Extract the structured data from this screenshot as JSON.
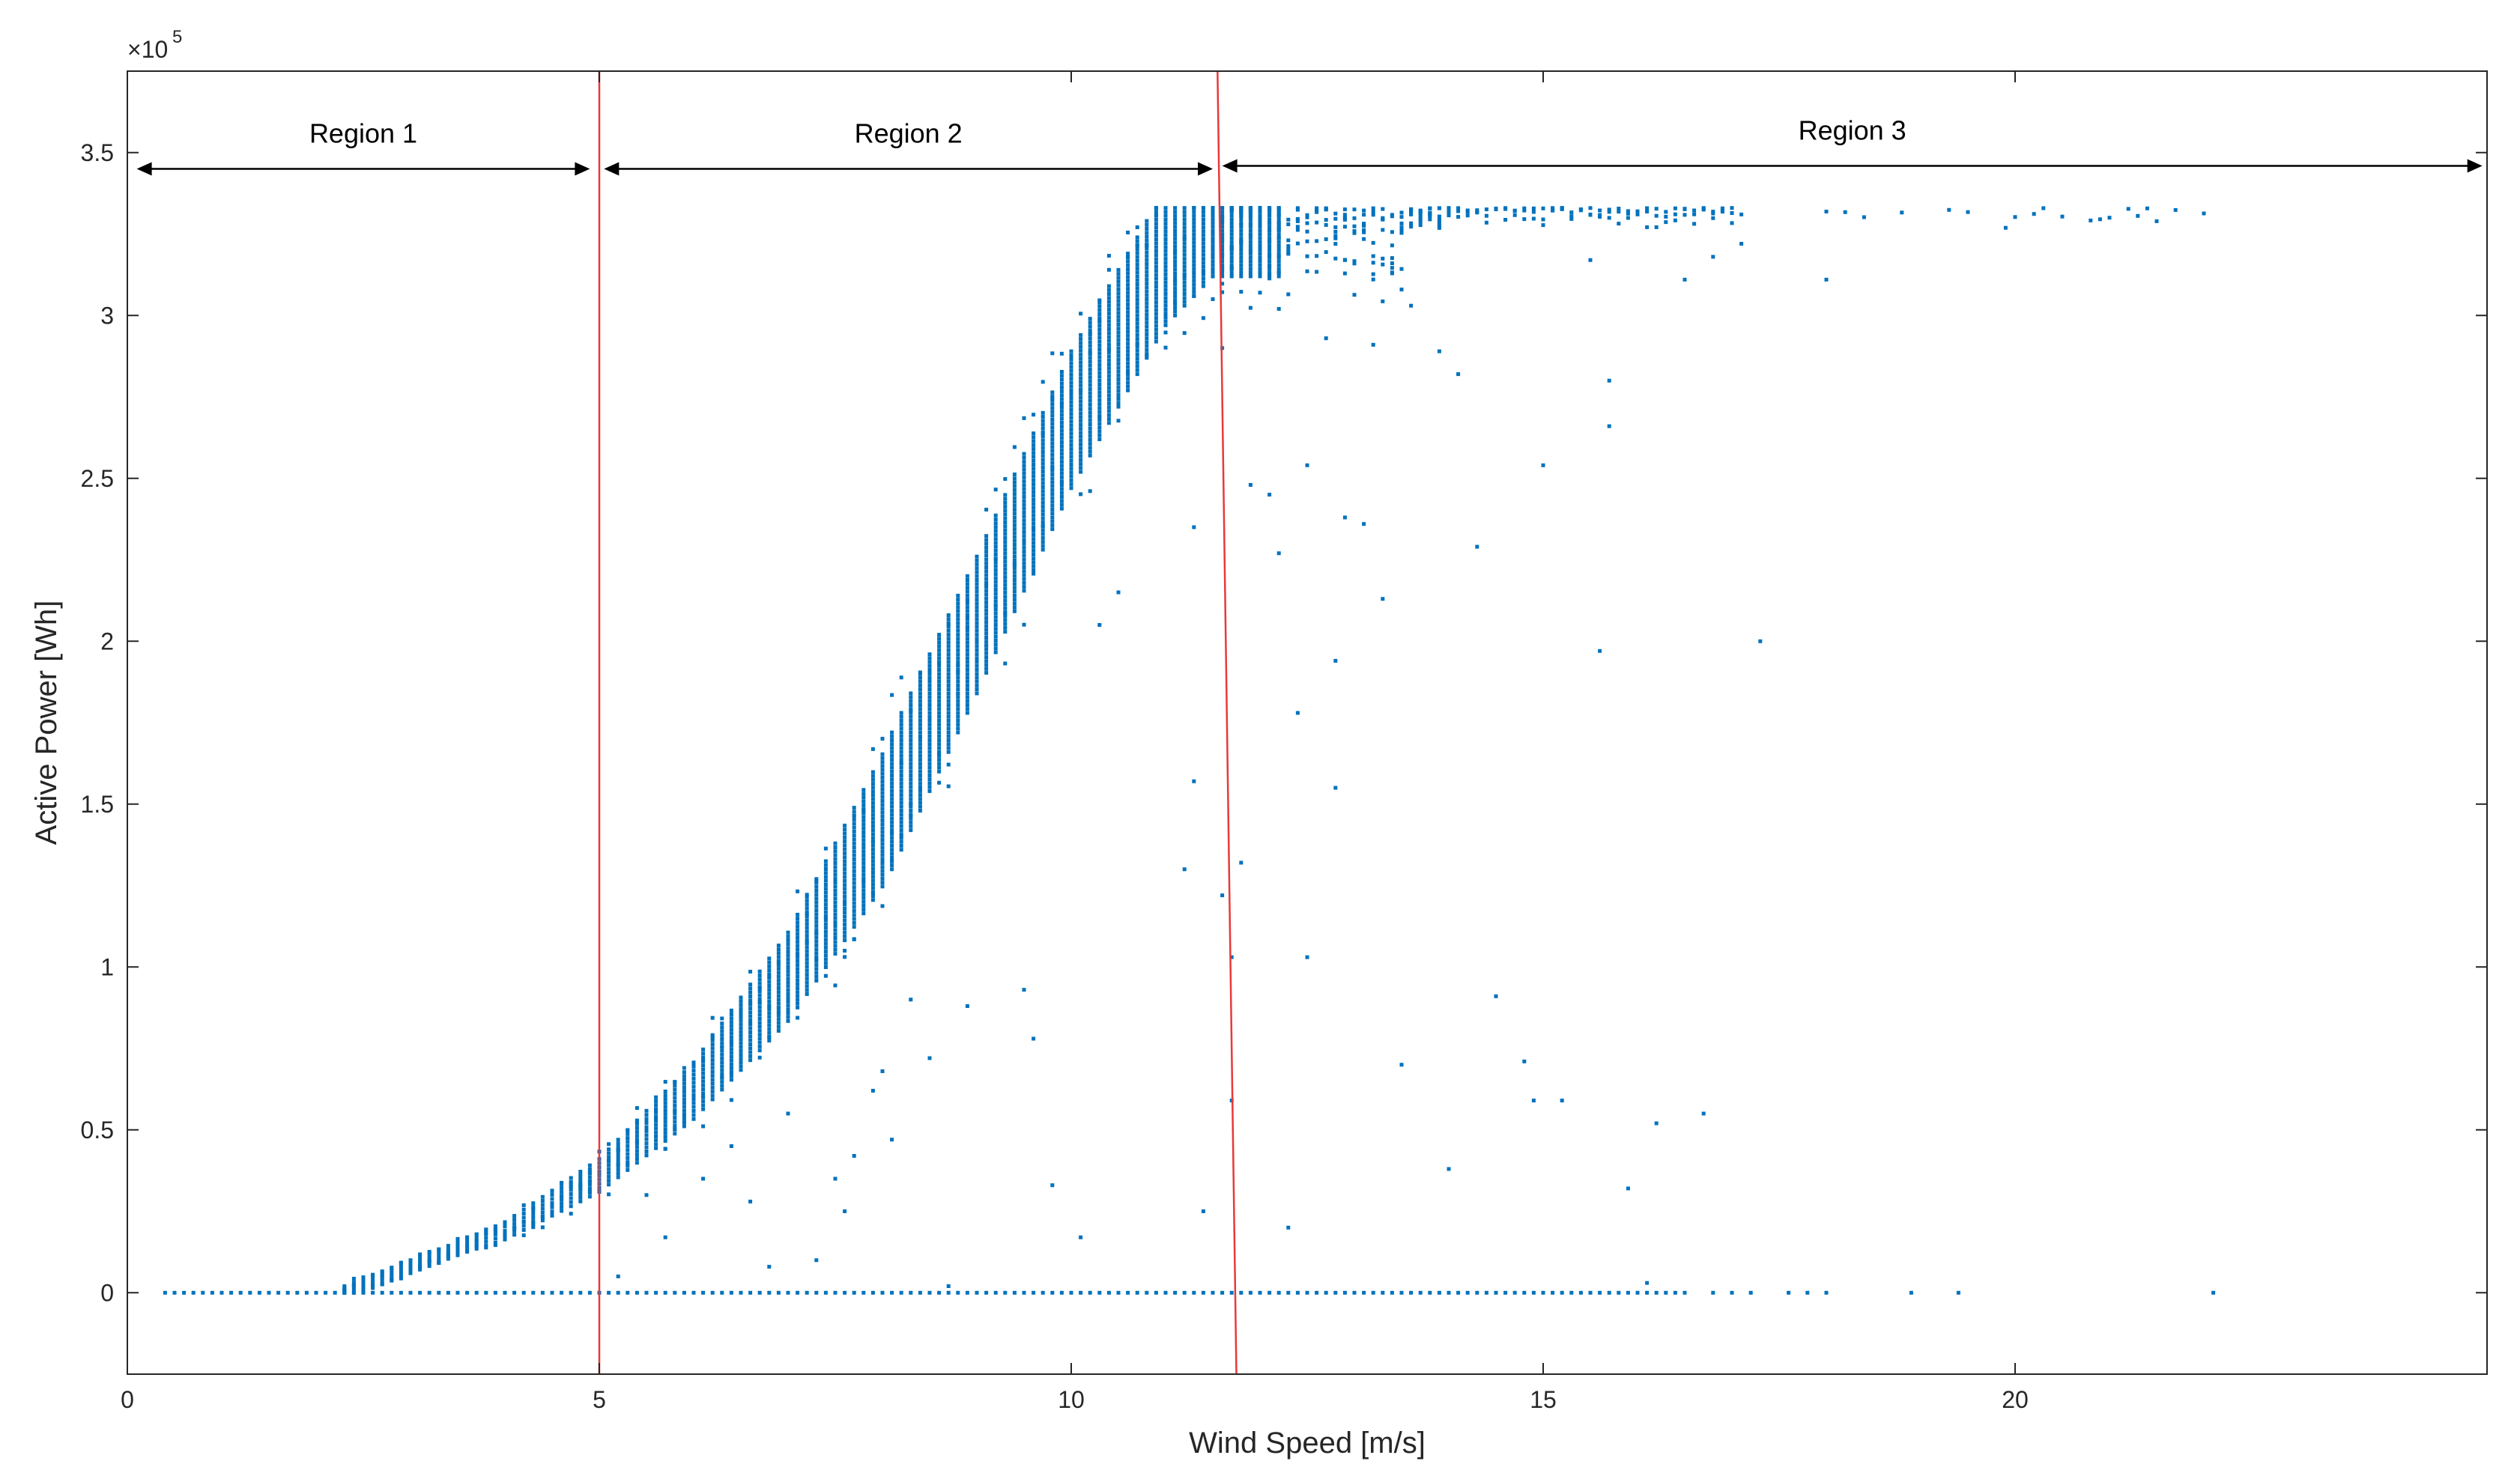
{
  "chart_data": {
    "type": "scatter",
    "title": "",
    "xlabel": "Wind Speed [m/s]",
    "ylabel": "Active Power [Wh]",
    "xlim": [
      0,
      25
    ],
    "ylim": [
      -25000,
      375000
    ],
    "y_exponent_label": "×10",
    "y_exponent_power": "5",
    "x_ticks": [
      0,
      5,
      10,
      15,
      20
    ],
    "x_tick_labels": [
      "0",
      "5",
      "10",
      "15",
      "20"
    ],
    "y_ticks": [
      0,
      50000,
      100000,
      150000,
      200000,
      250000,
      300000,
      350000
    ],
    "y_tick_labels": [
      "0",
      "0.5",
      "1",
      "1.5",
      "2",
      "2.5",
      "3",
      "3.5"
    ],
    "grid": false,
    "colors": {
      "points": "#0072BD",
      "boundary": "#E8393A",
      "axes": "#262626",
      "arrows": "#000000"
    },
    "power_curve": {
      "cut_in_speed": 2.3,
      "rated_speed": 11.5,
      "rated_power": 333000,
      "bin_width": 0.1,
      "points": [
        {
          "x": 2.3,
          "y": 0
        },
        {
          "x": 3,
          "y": 8000
        },
        {
          "x": 4,
          "y": 19000
        },
        {
          "x": 5,
          "y": 36000
        },
        {
          "x": 6,
          "y": 62000
        },
        {
          "x": 7,
          "y": 97000
        },
        {
          "x": 8,
          "y": 145000
        },
        {
          "x": 9,
          "y": 205000
        },
        {
          "x": 10,
          "y": 268000
        },
        {
          "x": 11,
          "y": 318000
        },
        {
          "x": 11.5,
          "y": 333000
        }
      ]
    },
    "outliers": [
      [
        5.2,
        5000
      ],
      [
        5.5,
        30000
      ],
      [
        5.7,
        17000
      ],
      [
        6.1,
        35000
      ],
      [
        6.4,
        45000
      ],
      [
        6.6,
        28000
      ],
      [
        6.8,
        8000
      ],
      [
        7.0,
        55000
      ],
      [
        7.3,
        10000
      ],
      [
        7.5,
        35000
      ],
      [
        7.6,
        25000
      ],
      [
        7.7,
        42000
      ],
      [
        7.9,
        62000
      ],
      [
        8.0,
        68000
      ],
      [
        8.1,
        47000
      ],
      [
        8.3,
        90000
      ],
      [
        8.5,
        72000
      ],
      [
        8.7,
        2000
      ],
      [
        8.9,
        88000
      ],
      [
        9.5,
        93000
      ],
      [
        9.6,
        78000
      ],
      [
        9.8,
        33000
      ],
      [
        10.1,
        17000
      ],
      [
        10.3,
        205000
      ],
      [
        10.5,
        215000
      ],
      [
        11.3,
        157000
      ],
      [
        11.2,
        130000
      ],
      [
        11.4,
        25000
      ],
      [
        11.6,
        122000
      ],
      [
        11.7,
        103000
      ],
      [
        11.8,
        132000
      ],
      [
        11.9,
        248000
      ],
      [
        12.1,
        245000
      ],
      [
        12.2,
        227000
      ],
      [
        12.3,
        20000
      ],
      [
        12.4,
        178000
      ],
      [
        12.5,
        103000
      ],
      [
        12.5,
        254000
      ],
      [
        12.8,
        194000
      ],
      [
        12.8,
        155000
      ],
      [
        12.9,
        238000
      ],
      [
        13.3,
        213000
      ],
      [
        13.1,
        236000
      ],
      [
        13.5,
        70000
      ],
      [
        13.9,
        289000
      ],
      [
        14.0,
        38000
      ],
      [
        14.1,
        282000
      ],
      [
        14.3,
        229000
      ],
      [
        14.5,
        91000
      ],
      [
        14.8,
        71000
      ],
      [
        14.9,
        59000
      ],
      [
        15.0,
        254000
      ],
      [
        15.2,
        59000
      ],
      [
        15.6,
        197000
      ],
      [
        15.7,
        280000
      ],
      [
        15.7,
        266000
      ],
      [
        15.9,
        32000
      ],
      [
        16.2,
        52000
      ],
      [
        16.5,
        311000
      ],
      [
        16.7,
        55000
      ],
      [
        17.1,
        322000
      ],
      [
        17.3,
        200000
      ],
      [
        18.0,
        311000
      ],
      [
        13.6,
        303000
      ],
      [
        12.7,
        293000
      ],
      [
        13.2,
        291000
      ],
      [
        11.3,
        235000
      ],
      [
        11.6,
        290000
      ],
      [
        11.7,
        59000
      ],
      [
        11.5,
        305000
      ],
      [
        12.0,
        307000
      ],
      [
        12.2,
        302000
      ],
      [
        16.1,
        3000
      ],
      [
        12.9,
        317000
      ],
      [
        13.4,
        316000
      ],
      [
        15.5,
        317000
      ],
      [
        16.8,
        318000
      ]
    ],
    "region_boundaries": [
      {
        "x_bottom": 5.0,
        "x_top": 5.0
      },
      {
        "x_bottom": 11.75,
        "x_top": 11.55
      }
    ],
    "regions": [
      {
        "label": "Region 1",
        "x_start": 0.1,
        "x_end": 4.9,
        "y": 345000
      },
      {
        "label": "Region 2",
        "x_start": 5.05,
        "x_end": 11.5,
        "y": 345000
      },
      {
        "label": "Region 3",
        "x_start": 11.6,
        "x_end": 24.95,
        "y": 345000
      }
    ]
  }
}
